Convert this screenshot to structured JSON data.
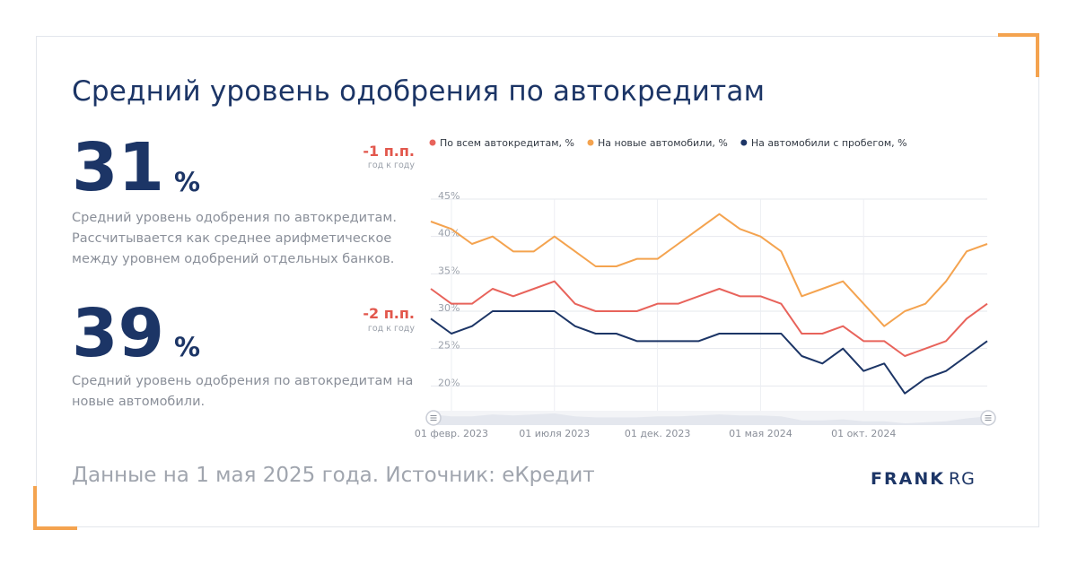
{
  "title": "Средний уровень одобрения по автокредитам",
  "stats": [
    {
      "value": "31",
      "unit": "%",
      "change": "-1 п.п.",
      "change_label": "год к году",
      "description": "Средний уровень одобрения по автокредитам. Рассчитывается как среднее арифметическое между уровнем одобрений отдельных банков."
    },
    {
      "value": "39",
      "unit": "%",
      "change": "-2 п.п.",
      "change_label": "год к году",
      "description": "Средний уровень одобрения по автокредитам на новые автомобили."
    }
  ],
  "footer": {
    "source": "Данные на 1 мая 2025 года. Источник: еКредит",
    "logo_bold": "FRANK",
    "logo_light": "RG"
  },
  "colors": {
    "accent": "#f4a34f",
    "title": "#1c3566",
    "change": "#e2574c"
  },
  "chart_data": {
    "type": "line",
    "x": [
      "2023-01",
      "2023-02",
      "2023-03",
      "2023-04",
      "2023-05",
      "2023-06",
      "2023-07",
      "2023-08",
      "2023-09",
      "2023-10",
      "2023-11",
      "2023-12",
      "2024-01",
      "2024-02",
      "2024-03",
      "2024-04",
      "2024-05",
      "2024-06",
      "2024-07",
      "2024-08",
      "2024-09",
      "2024-10",
      "2024-11",
      "2024-12",
      "2025-01",
      "2025-02",
      "2025-03",
      "2025-04"
    ],
    "series": [
      {
        "name": "По всем автокредитам, %",
        "color": "#e8635b",
        "values": [
          33,
          31,
          31,
          33,
          32,
          33,
          34,
          31,
          30,
          30,
          30,
          31,
          31,
          32,
          33,
          32,
          32,
          31,
          27,
          27,
          28,
          26,
          26,
          24,
          25,
          26,
          29,
          31
        ]
      },
      {
        "name": "На новые автомобили, %",
        "color": "#f4a34f",
        "values": [
          42,
          41,
          39,
          40,
          38,
          38,
          40,
          38,
          36,
          36,
          37,
          37,
          39,
          41,
          43,
          41,
          40,
          38,
          32,
          33,
          34,
          31,
          28,
          30,
          31,
          34,
          38,
          39
        ]
      },
      {
        "name": "На автомобили с пробегом, %",
        "color": "#1c3566",
        "values": [
          29,
          27,
          28,
          30,
          30,
          30,
          30,
          28,
          27,
          27,
          26,
          26,
          26,
          26,
          27,
          27,
          27,
          27,
          24,
          23,
          25,
          22,
          23,
          19,
          21,
          22,
          24,
          26
        ]
      }
    ],
    "yticks": [
      "45%",
      "40%",
      "35%",
      "30%",
      "25%",
      "20%"
    ],
    "ytick_values": [
      45,
      40,
      35,
      30,
      25,
      20
    ],
    "ylim": [
      15,
      45
    ],
    "xticks": [
      "01 февр. 2023",
      "01 июля 2023",
      "01 дек. 2023",
      "01 мая 2024",
      "01 окт. 2024"
    ],
    "xtick_positions": [
      "2023-02",
      "2023-07",
      "2023-12",
      "2024-05",
      "2024-10"
    ],
    "grid": true,
    "legend_position": "top",
    "has_zoom_slider": true
  }
}
